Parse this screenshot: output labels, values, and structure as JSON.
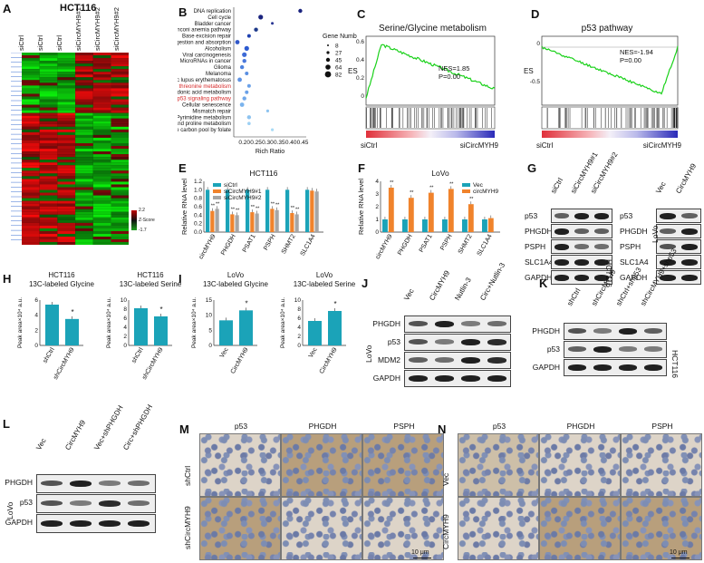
{
  "panels": {
    "A": {
      "label": "A",
      "title": "HCT116",
      "columns": [
        "siCtrl",
        "siCtrl",
        "siCtrl",
        "siCircMYH9#1",
        "siCircMYH9#2",
        "siCircMYH9#2"
      ],
      "scale_max": "2.2",
      "scale_mid": "Z-Score",
      "scale_min": "-1.7"
    },
    "B": {
      "label": "B",
      "terms": [
        "DNA replication",
        "Cell cycle",
        "Bladder cancer",
        "Fanconi anemia pathway",
        "Base excision repair",
        "Protein digestion and absorption",
        "Alcoholism",
        "Viral carcinogenesis",
        "MicroRNAs in cancer",
        "Glioma",
        "Melanoma",
        "Systemic lupus erythematosus",
        "Glycine, serine and threonine metabolism",
        "Arachidonic acid metabolism",
        "p53 signaling pathway",
        "Cellular senescence",
        "Mismatch repair",
        "Pyrimidine metabolism",
        "Arginine and proline metabolism",
        "One carbon pool by folate"
      ],
      "highlight": [
        "Glycine, serine and threonine metabolism",
        "p53 signaling pathway"
      ],
      "rich_ratio": [
        0.44,
        0.27,
        0.32,
        0.25,
        0.22,
        0.17,
        0.21,
        0.2,
        0.2,
        0.19,
        0.21,
        0.18,
        0.22,
        0.21,
        0.2,
        0.19,
        0.3,
        0.22,
        0.22,
        0.32
      ],
      "xticks": [
        "0.20",
        "0.25",
        "0.30",
        "0.35",
        "0.40",
        "0.45"
      ],
      "xlabel": "Rich Ratio",
      "legend_title": "Gene Number",
      "legend_sizes": [
        "8",
        "27",
        "45",
        "64",
        "82"
      ]
    },
    "C": {
      "label": "C",
      "title": "Serine/Glycine metabolism",
      "ylabel": "ES",
      "yticks": [
        "0.6",
        "0.4",
        "0.2",
        "0"
      ],
      "nes": "NES=1.85",
      "p": "P=0.00",
      "left": "siCtrl",
      "right": "siCircMYH9"
    },
    "D": {
      "label": "D",
      "title": "p53 pathway",
      "ylabel": "ES",
      "yticks": [
        "0",
        "-0.5"
      ],
      "nes": "NES=-1.94",
      "p": "P=0.00",
      "left": "siCtrl",
      "right": "siCircMYH9"
    },
    "E": {
      "label": "E",
      "title": "HCT116",
      "ylabel": "Relative RNA level",
      "yticks": [
        "0.0",
        "0.2",
        "0.4",
        "0.6",
        "0.8",
        "1.0",
        "1.2"
      ],
      "categories": [
        "circMYH9",
        "PHGDH",
        "PSAT1",
        "PSPH",
        "SHMT2",
        "SLC1A4"
      ],
      "series": [
        {
          "name": "siCtrl",
          "color": "#1ba3b8",
          "values": [
            1.0,
            1.0,
            1.0,
            1.0,
            1.0,
            1.0
          ]
        },
        {
          "name": "siCircMYH9#1",
          "color": "#f0832c",
          "values": [
            0.5,
            0.42,
            0.47,
            0.55,
            0.45,
            0.98
          ]
        },
        {
          "name": "siCircMYH9#2",
          "color": "#a6a6a6",
          "values": [
            0.55,
            0.4,
            0.44,
            0.52,
            0.42,
            0.96
          ]
        }
      ],
      "stars": "**"
    },
    "F": {
      "label": "F",
      "title": "LoVo",
      "ylabel": "Relative RNA level",
      "yticks": [
        "0",
        "1",
        "2",
        "3",
        "4"
      ],
      "categories": [
        "circMYH9",
        "PHGDH",
        "PSAT1",
        "PSPH",
        "SHMT2",
        "SLC1A4"
      ],
      "series": [
        {
          "name": "Vec",
          "color": "#1ba3b8",
          "values": [
            1.0,
            1.0,
            1.0,
            1.0,
            1.0,
            1.0
          ]
        },
        {
          "name": "circMYH9",
          "color": "#f0832c",
          "values": [
            3.5,
            2.7,
            3.1,
            3.4,
            2.2,
            1.1
          ]
        }
      ],
      "stars": "**"
    },
    "G": {
      "label": "G",
      "left_lanes": [
        "siCtrl",
        "siCircMYH9#1",
        "siCircMYH9#2"
      ],
      "right_lanes": [
        "Vec",
        "CircMYH9"
      ],
      "rows": [
        "p53",
        "PHGDH",
        "PSPH",
        "SLC1A4",
        "GAPDH"
      ],
      "left_cell": "HCT116",
      "right_cell": "LoVo"
    },
    "H": {
      "label": "H",
      "charts": [
        {
          "title1": "HCT116",
          "title2": "13C-labeled Glycine",
          "ylabel": "Peak area×10⁴ a.u.",
          "yticks": [
            "0",
            "2",
            "4",
            "6"
          ],
          "categories": [
            "shCtrl",
            "shCircMYH9"
          ],
          "values": [
            5.4,
            3.5
          ],
          "ymax": 6,
          "star": "*"
        },
        {
          "title1": "HCT116",
          "title2": "13C-labeled Serine",
          "ylabel": "Peak area×10⁴ a.u.",
          "yticks": [
            "0",
            "2",
            "4",
            "6",
            "8",
            "10"
          ],
          "categories": [
            "shCtrl",
            "shCircMYH9"
          ],
          "values": [
            8.2,
            6.4
          ],
          "ymax": 10,
          "star": "*"
        }
      ]
    },
    "I": {
      "label": "I",
      "charts": [
        {
          "title1": "LoVo",
          "title2": "13C-labeled Glycine",
          "ylabel": "Peak area×10⁴ a.u.",
          "yticks": [
            "0",
            "5",
            "10",
            "15"
          ],
          "categories": [
            "Vec",
            "CircMYH9"
          ],
          "values": [
            8.3,
            11.6
          ],
          "ymax": 15,
          "star": "*"
        },
        {
          "title1": "LoVo",
          "title2": "13C-labeled Serine",
          "ylabel": "Peak area×10⁴ a.u.",
          "yticks": [
            "0",
            "2",
            "4",
            "6",
            "8",
            "10"
          ],
          "categories": [
            "Vec",
            "CircMYH9"
          ],
          "values": [
            5.4,
            7.6
          ],
          "ymax": 10,
          "star": "*"
        }
      ]
    },
    "J": {
      "label": "J",
      "lanes": [
        "Vec",
        "CircMYH9",
        "Nutlin-3",
        "Circ+Nutlin-3"
      ],
      "rows": [
        "PHGDH",
        "p53",
        "MDM2",
        "GAPDH"
      ],
      "cell": "LoVo"
    },
    "K": {
      "label": "K",
      "lanes": [
        "shCtrl",
        "shCircMYH9",
        "shCtrl+shp53",
        "shCircMYH9+shp53"
      ],
      "rows": [
        "PHGDH",
        "p53",
        "GAPDH"
      ],
      "cell": "HCT116"
    },
    "L": {
      "label": "L",
      "lanes": [
        "Vec",
        "CircMYH9",
        "Vec+shPHGDH",
        "Circ+shPHGDH"
      ],
      "rows": [
        "PHGDH",
        "p53",
        "GAPDH"
      ],
      "cell": "LoVo"
    },
    "M": {
      "label": "M",
      "cols": [
        "p53",
        "PHGDH",
        "PSPH"
      ],
      "rows": [
        "shCtrl",
        "shCircMYH9"
      ],
      "scale": "10 μm"
    },
    "N": {
      "label": "N",
      "cols": [
        "p53",
        "PHGDH",
        "PSPH"
      ],
      "rows": [
        "Vec",
        "CircMYH9"
      ],
      "scale": "10 μm"
    }
  }
}
